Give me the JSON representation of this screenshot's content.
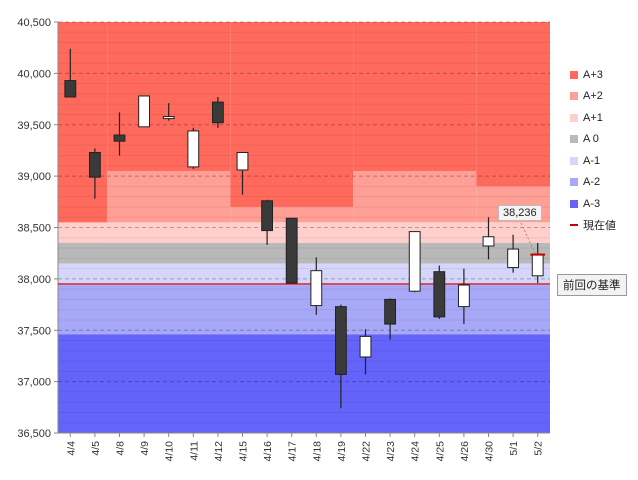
{
  "legend": {
    "items": [
      {
        "label": "A+3",
        "color": "#ff6a5c"
      },
      {
        "label": "A+2",
        "color": "#ff9f95"
      },
      {
        "label": "A+1",
        "color": "#ffcfcb"
      },
      {
        "label": "A 0",
        "color": "#b9b9b9"
      },
      {
        "label": "A-1",
        "color": "#d6d6fb"
      },
      {
        "label": "A-2",
        "color": "#a8a8f8"
      },
      {
        "label": "A-3",
        "color": "#6464fa"
      }
    ],
    "current_label": "現在値",
    "current_color": "#cc0000"
  },
  "annotations": {
    "current_value_text": "38,236",
    "reference_label": "前回の基準"
  },
  "chart_data": {
    "type": "candlestick",
    "title": "",
    "xlabel": "",
    "ylabel": "",
    "ylim": [
      36500,
      40500
    ],
    "yticks": [
      36500,
      37000,
      37500,
      38000,
      38500,
      39000,
      39500,
      40000,
      40500
    ],
    "ytick_labels": [
      "36,500",
      "37,000",
      "37,500",
      "38,000",
      "38,500",
      "39,000",
      "39,500",
      "40,000",
      "40,500"
    ],
    "categories": [
      "4/4",
      "4/5",
      "4/8",
      "4/9",
      "4/10",
      "4/11",
      "4/12",
      "4/15",
      "4/16",
      "4/17",
      "4/18",
      "4/19",
      "4/22",
      "4/23",
      "4/24",
      "4/25",
      "4/26",
      "4/30",
      "5/1",
      "5/2"
    ],
    "candles": [
      {
        "open": 39930,
        "high": 40240,
        "low": 39770,
        "close": 39770
      },
      {
        "open": 39230,
        "high": 39270,
        "low": 38780,
        "close": 38990
      },
      {
        "open": 39400,
        "high": 39620,
        "low": 39200,
        "close": 39340
      },
      {
        "open": 39480,
        "high": 39780,
        "low": 39480,
        "close": 39780
      },
      {
        "open": 39560,
        "high": 39710,
        "low": 39540,
        "close": 39580
      },
      {
        "open": 39090,
        "high": 39470,
        "low": 39070,
        "close": 39440
      },
      {
        "open": 39720,
        "high": 39770,
        "low": 39470,
        "close": 39520
      },
      {
        "open": 39060,
        "high": 39230,
        "low": 38820,
        "close": 39230
      },
      {
        "open": 38760,
        "high": 38770,
        "low": 38330,
        "close": 38470
      },
      {
        "open": 38590,
        "high": 38590,
        "low": 37960,
        "close": 37960
      },
      {
        "open": 37740,
        "high": 38210,
        "low": 37650,
        "close": 38080
      },
      {
        "open": 37730,
        "high": 37750,
        "low": 36740,
        "close": 37070
      },
      {
        "open": 37240,
        "high": 37510,
        "low": 37070,
        "close": 37440
      },
      {
        "open": 37800,
        "high": 37810,
        "low": 37410,
        "close": 37560
      },
      {
        "open": 37880,
        "high": 38460,
        "low": 37870,
        "close": 38460
      },
      {
        "open": 38070,
        "high": 38130,
        "low": 37610,
        "close": 37630
      },
      {
        "open": 37730,
        "high": 38100,
        "low": 37560,
        "close": 37940
      },
      {
        "open": 38320,
        "high": 38600,
        "low": 38190,
        "close": 38410
      },
      {
        "open": 38110,
        "high": 38430,
        "low": 38060,
        "close": 38290
      },
      {
        "open": 38030,
        "high": 38350,
        "low": 37960,
        "close": 38240
      }
    ],
    "bands": [
      {
        "name": "A+3",
        "color": "#ff6a5c",
        "segments": [
          {
            "from": 0,
            "to": 2,
            "low": 38500,
            "high": 40500
          },
          {
            "from": 2,
            "to": 7,
            "low": 39050,
            "high": 40500
          },
          {
            "from": 7,
            "to": 12,
            "low": 38700,
            "high": 40500
          },
          {
            "from": 12,
            "to": 17,
            "low": 39050,
            "high": 40500
          },
          {
            "from": 17,
            "to": 20,
            "low": 38900,
            "high": 40500
          }
        ]
      },
      {
        "name": "A+2",
        "color": "#ff9f95",
        "segments": [
          {
            "from": 0,
            "to": 2,
            "low": 38300,
            "high": 38500
          },
          {
            "from": 2,
            "to": 7,
            "low": 38500,
            "high": 39050
          },
          {
            "from": 7,
            "to": 12,
            "low": 38550,
            "high": 38700
          },
          {
            "from": 12,
            "to": 17,
            "low": 38550,
            "high": 39050
          },
          {
            "from": 17,
            "to": 20,
            "low": 38550,
            "high": 38900
          }
        ]
      },
      {
        "name": "A+1",
        "color": "#ffcfcb",
        "segments": [
          {
            "from": 0,
            "to": 20,
            "low": 38350,
            "high": 38550
          }
        ]
      },
      {
        "name": "A 0",
        "color": "#b9b9b9",
        "segments": [
          {
            "from": 0,
            "to": 20,
            "low": 38150,
            "high": 38350
          }
        ]
      },
      {
        "name": "A-1",
        "color": "#d6d6fb",
        "segments": [
          {
            "from": 0,
            "to": 20,
            "low": 37940,
            "high": 38150
          }
        ]
      },
      {
        "name": "A-2",
        "color": "#a8a8f8",
        "segments": [
          {
            "from": 0,
            "to": 20,
            "low": 37460,
            "high": 37940
          }
        ]
      },
      {
        "name": "A-3",
        "color": "#6464fa",
        "segments": [
          {
            "from": 0,
            "to": 20,
            "low": 36500,
            "high": 37460
          }
        ]
      }
    ],
    "reference_value": 37950,
    "current_value": 38236
  }
}
